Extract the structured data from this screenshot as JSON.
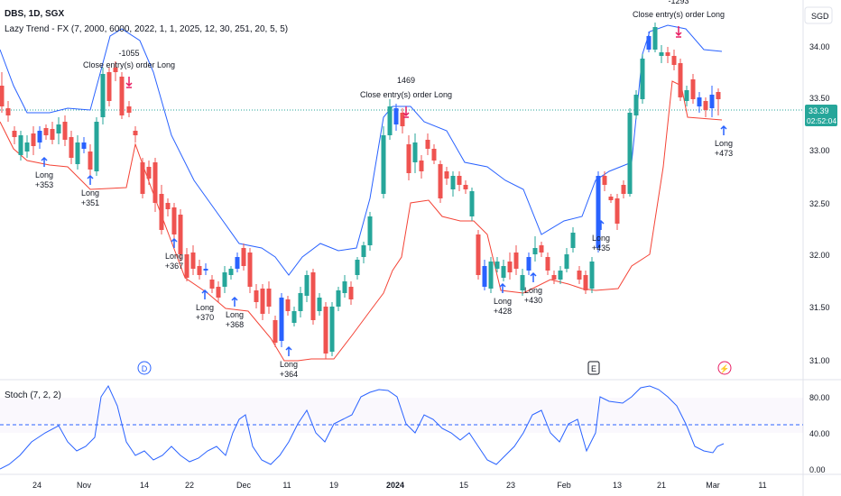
{
  "header": {
    "symbol": "DBS, 1D, SGX",
    "indicator": "Lazy Trend - FX (7, 2000, 6000, 2022, 1, 1, 2025, 12, 30, 251, 20, 5, 5)",
    "currency_button": "SGD"
  },
  "stoch": {
    "label": "Stoch (7, 2, 2)"
  },
  "price_axis": {
    "ticks": [
      "34.00",
      "33.50",
      "33.00",
      "32.50",
      "32.00",
      "31.50",
      "31.00"
    ],
    "last_price": "33.39",
    "countdown": "02:52:04"
  },
  "stoch_axis": {
    "ticks": [
      "80.00",
      "40.00",
      "0.00"
    ]
  },
  "time_axis": {
    "ticks": [
      "24",
      "Nov",
      "14",
      "22",
      "Dec",
      "11",
      "19",
      "2024",
      "15",
      "23",
      "Feb",
      "13",
      "21",
      "Mar",
      "11"
    ]
  },
  "colors": {
    "up": "#26a69a",
    "down": "#ef5350",
    "bb_upper": "#2962ff",
    "bb_lower": "#f44336",
    "stoch_line": "#2962ff",
    "highlight_candle": "#2962ff"
  },
  "annotations": {
    "longs": [
      {
        "label": "Long",
        "value": "+353"
      },
      {
        "label": "Long",
        "value": "+351"
      },
      {
        "label": "Long",
        "value": "+367"
      },
      {
        "label": "Long",
        "value": "+370"
      },
      {
        "label": "Long",
        "value": "+368"
      },
      {
        "label": "Long",
        "value": "+364"
      },
      {
        "label": "Long",
        "value": "+428"
      },
      {
        "label": "Long",
        "value": "+430"
      },
      {
        "label": "Long",
        "value": "+435"
      },
      {
        "label": "Long",
        "value": "+473"
      }
    ],
    "closes": [
      {
        "label": "Close entry(s) order Long",
        "value": "-1055"
      },
      {
        "label": "Close entry(s) order Long",
        "value": "1469"
      },
      {
        "label": "Close entry(s) order Long",
        "value": "-1293"
      }
    ],
    "events": [
      {
        "letter": "D",
        "color": "#2962ff"
      },
      {
        "letter": "E",
        "color": "#131722"
      },
      {
        "letter": "⚡",
        "color": "#e91e63"
      }
    ]
  }
}
